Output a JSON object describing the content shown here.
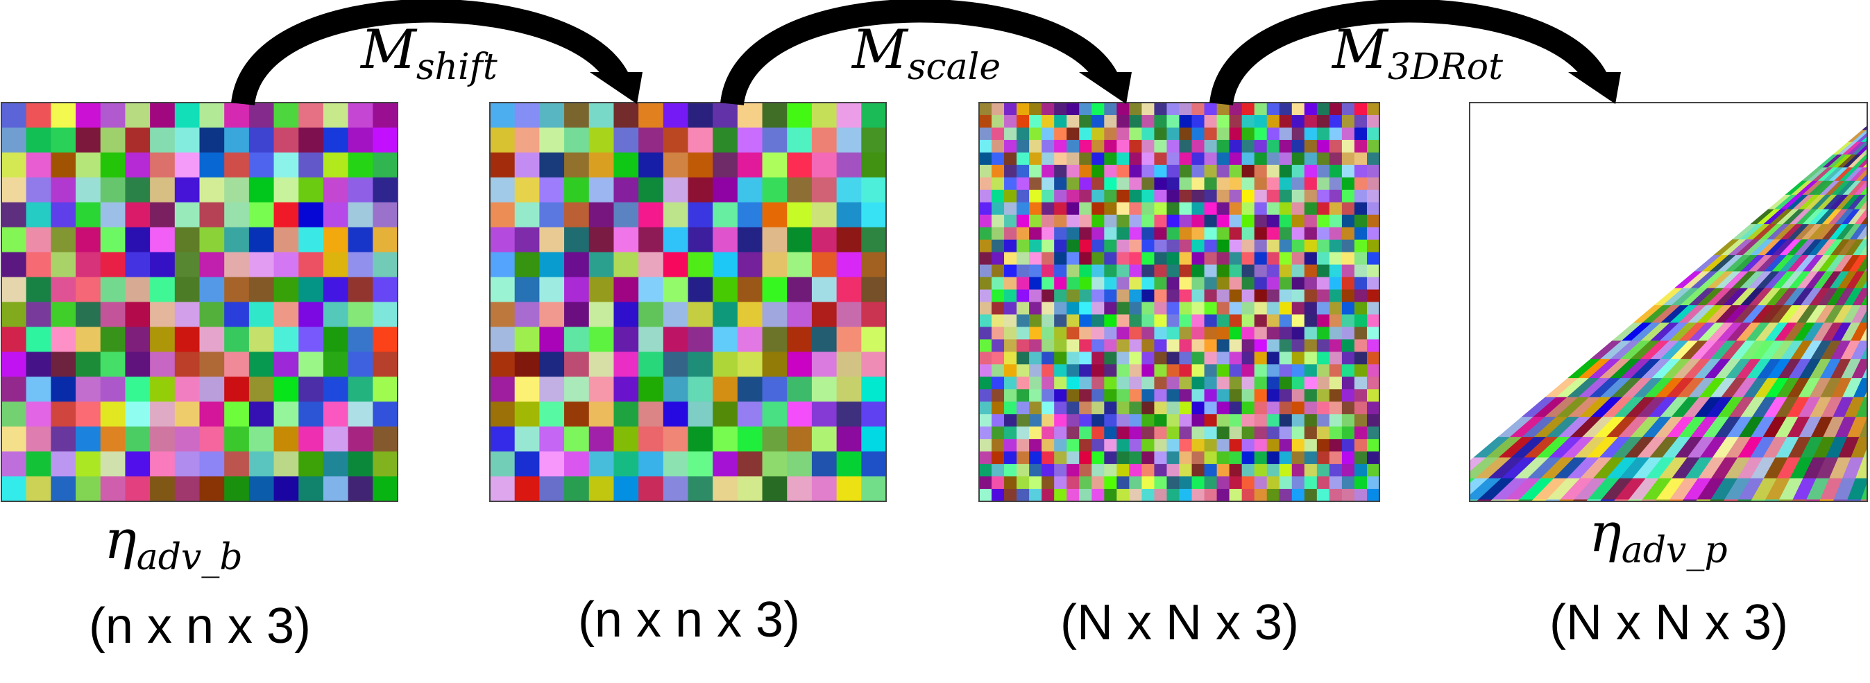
{
  "arrows": [
    {
      "main": "M",
      "sub": "shift"
    },
    {
      "main": "M",
      "sub": "scale"
    },
    {
      "main": "M",
      "sub": "3DRot"
    }
  ],
  "panels": [
    {
      "name": "panel-base-pattern",
      "label_main": "η",
      "label_sub": "adv_b",
      "dims": "(n x n x 3)",
      "grid": 16
    },
    {
      "name": "panel-shifted-pattern",
      "label_main": "",
      "label_sub": "",
      "dims": "(n x n x 3)",
      "grid": 16
    },
    {
      "name": "panel-scaled-pattern",
      "label_main": "",
      "label_sub": "",
      "dims": "(N x N x 3)",
      "grid": 32
    },
    {
      "name": "panel-rotated-pattern",
      "label_main": "η",
      "label_sub": "adv_p",
      "dims": "(N x N x 3)",
      "grid": 40
    }
  ]
}
